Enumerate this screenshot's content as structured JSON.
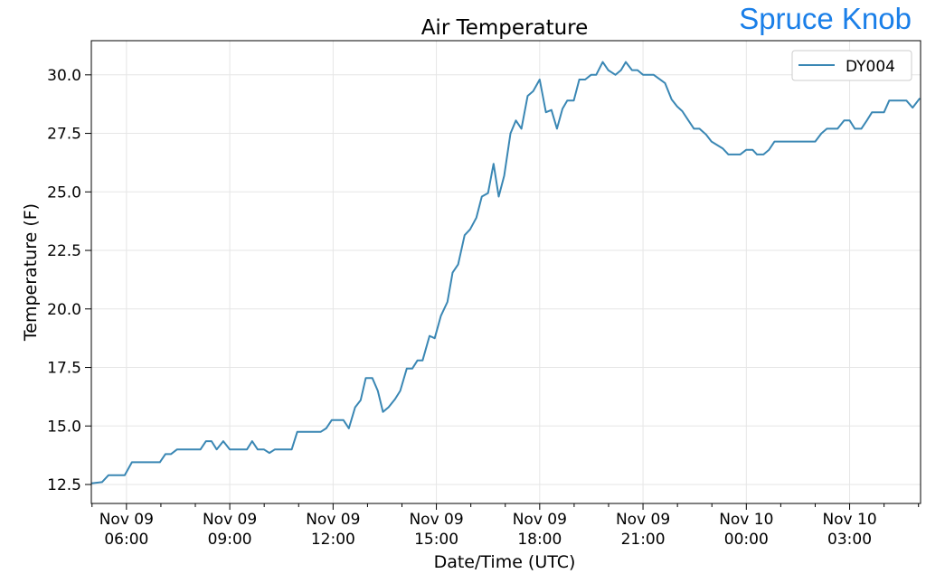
{
  "brand": {
    "station_name": "Spruce Knob",
    "color": "#1a7fe8"
  },
  "chart_data": {
    "type": "line",
    "title": "Air Temperature",
    "xlabel": "Date/Time (UTC)",
    "ylabel": "Temperature (F)",
    "x_unit": "hours from Nov 09 00:00 UTC",
    "xlim": [
      4.98,
      29.06
    ],
    "ylim": [
      11.69,
      31.46
    ],
    "grid": true,
    "legend_position": "top-right",
    "x_ticks": [
      {
        "value": 6,
        "line1": "Nov 09",
        "line2": "06:00"
      },
      {
        "value": 9,
        "line1": "Nov 09",
        "line2": "09:00"
      },
      {
        "value": 12,
        "line1": "Nov 09",
        "line2": "12:00"
      },
      {
        "value": 15,
        "line1": "Nov 09",
        "line2": "15:00"
      },
      {
        "value": 18,
        "line1": "Nov 09",
        "line2": "18:00"
      },
      {
        "value": 21,
        "line1": "Nov 09",
        "line2": "21:00"
      },
      {
        "value": 24,
        "line1": "Nov 10",
        "line2": "00:00"
      },
      {
        "value": 27,
        "line1": "Nov 10",
        "line2": "03:00"
      }
    ],
    "y_ticks": [
      {
        "value": 12.5,
        "label": "12.5"
      },
      {
        "value": 15,
        "label": "15.0"
      },
      {
        "value": 17.5,
        "label": "17.5"
      },
      {
        "value": 20,
        "label": "20.0"
      },
      {
        "value": 22.5,
        "label": "22.5"
      },
      {
        "value": 25,
        "label": "25.0"
      },
      {
        "value": 27.5,
        "label": "27.5"
      },
      {
        "value": 30,
        "label": "30.0"
      }
    ],
    "series": [
      {
        "name": "DY004",
        "color": "#3a87b4",
        "x": [
          4.98,
          5.29,
          5.48,
          5.95,
          6.16,
          6.97,
          7.13,
          7.29,
          7.47,
          8.15,
          8.31,
          8.47,
          8.62,
          8.81,
          9.0,
          9.5,
          9.65,
          9.81,
          9.99,
          10.15,
          10.31,
          10.8,
          10.96,
          11.64,
          11.8,
          11.96,
          12.3,
          12.46,
          12.64,
          12.8,
          12.95,
          13.14,
          13.3,
          13.45,
          13.61,
          13.8,
          13.95,
          14.14,
          14.3,
          14.45,
          14.6,
          14.8,
          14.95,
          15.13,
          15.32,
          15.47,
          15.63,
          15.82,
          15.98,
          16.16,
          16.32,
          16.5,
          16.66,
          16.81,
          16.97,
          17.15,
          17.31,
          17.47,
          17.65,
          17.81,
          18.0,
          18.18,
          18.34,
          18.5,
          18.66,
          18.8,
          18.99,
          19.15,
          19.32,
          19.49,
          19.64,
          19.83,
          19.99,
          20.2,
          20.36,
          20.5,
          20.68,
          20.84,
          21.0,
          21.31,
          21.64,
          21.83,
          21.99,
          22.14,
          22.32,
          22.48,
          22.64,
          22.83,
          22.99,
          23.32,
          23.48,
          23.82,
          24.0,
          24.18,
          24.31,
          24.5,
          24.66,
          24.82,
          26.0,
          26.18,
          26.34,
          26.65,
          26.84,
          27.0,
          27.15,
          27.34,
          27.5,
          27.65,
          28.0,
          28.15,
          28.65,
          28.83,
          29.04
        ],
        "y": [
          12.55,
          12.6,
          12.9,
          12.9,
          13.45,
          13.45,
          13.8,
          13.8,
          14.0,
          14.0,
          14.35,
          14.35,
          14.0,
          14.35,
          14.0,
          14.0,
          14.35,
          14.0,
          14.0,
          13.85,
          14.0,
          14.0,
          14.75,
          14.75,
          14.9,
          15.25,
          15.25,
          14.9,
          15.8,
          16.1,
          17.05,
          17.05,
          16.5,
          15.6,
          15.8,
          16.15,
          16.5,
          17.45,
          17.45,
          17.8,
          17.8,
          18.85,
          18.75,
          19.7,
          20.3,
          21.55,
          21.9,
          23.15,
          23.4,
          23.9,
          24.8,
          24.95,
          26.2,
          24.8,
          25.7,
          27.5,
          28.05,
          27.7,
          29.1,
          29.3,
          29.8,
          28.4,
          28.5,
          27.7,
          28.55,
          28.9,
          28.9,
          29.8,
          29.8,
          30.0,
          30.0,
          30.55,
          30.2,
          30.0,
          30.2,
          30.55,
          30.2,
          30.2,
          30.0,
          30.0,
          29.65,
          28.95,
          28.65,
          28.45,
          28.05,
          27.7,
          27.7,
          27.45,
          27.15,
          26.85,
          26.6,
          26.6,
          26.8,
          26.8,
          26.6,
          26.6,
          26.8,
          27.15,
          27.15,
          27.5,
          27.7,
          27.7,
          28.05,
          28.05,
          27.7,
          27.7,
          28.05,
          28.4,
          28.4,
          28.9,
          28.9,
          28.6,
          29.0
        ]
      }
    ]
  }
}
